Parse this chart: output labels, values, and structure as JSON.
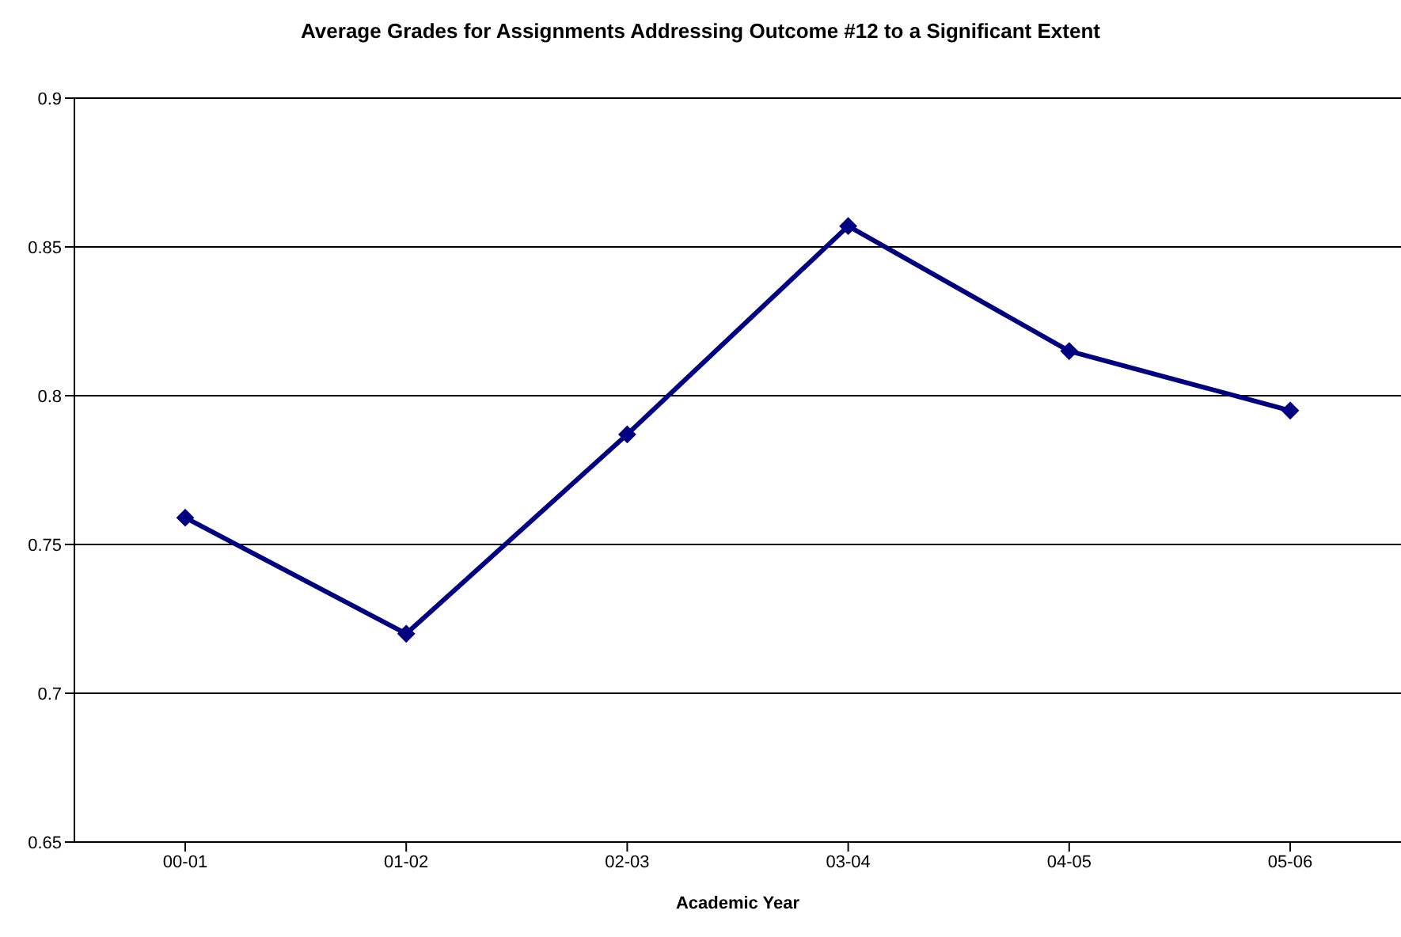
{
  "chart_data": {
    "type": "line",
    "title": "Average Grades for Assignments Addressing Outcome #12 to a Significant Extent",
    "xlabel": "Academic Year",
    "categories": [
      "00-01",
      "01-02",
      "02-03",
      "03-04",
      "04-05",
      "05-06"
    ],
    "series": [
      {
        "color": "#000080",
        "values": [
          0.759,
          0.72,
          0.787,
          0.857,
          0.815,
          0.795
        ]
      }
    ],
    "ylim": [
      0.65,
      0.9
    ],
    "yticks": [
      0.65,
      0.7,
      0.75,
      0.8,
      0.85,
      0.9
    ],
    "grid": "y",
    "marker": "diamond",
    "line_style": "solid"
  }
}
